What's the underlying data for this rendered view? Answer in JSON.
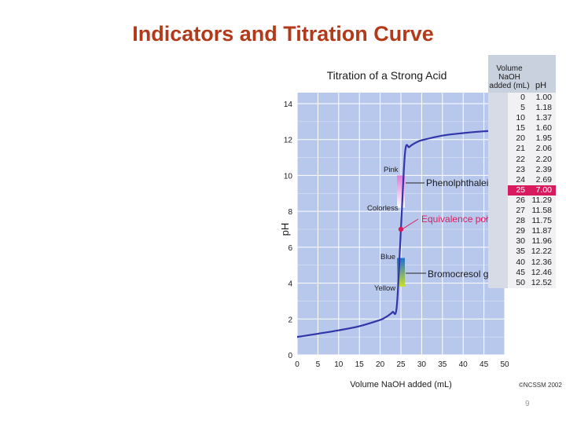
{
  "slide": {
    "title": "Indicators and Titration Curve",
    "page_number": "9",
    "copyright": "©NCSSM 2002"
  },
  "chart_data": {
    "type": "line",
    "title": "Titration of a Strong Acid",
    "xlabel": "Volume NaOH added (mL)",
    "ylabel": "pH",
    "xlim": [
      0,
      50
    ],
    "ylim": [
      0,
      14
    ],
    "xticks": [
      0,
      5,
      10,
      15,
      20,
      25,
      30,
      35,
      40,
      45,
      50
    ],
    "yticks": [
      0,
      2,
      4,
      6,
      8,
      10,
      12,
      14
    ],
    "grid": true,
    "colors": {
      "plot_bg": "#b8c8ec",
      "grid": "#ffffff",
      "curve": "#3035a8",
      "phenolphthalein": "#e27ad8",
      "bromocresol_top": "#1f6fd0",
      "bromocresol_bottom": "#c9e02a",
      "equivalence": "#d81b5e"
    },
    "series": [
      {
        "x": [
          0,
          5,
          10,
          15,
          20,
          21,
          22,
          23,
          24,
          25,
          26,
          27,
          28,
          29,
          30,
          35,
          40,
          45,
          50
        ],
        "y": [
          1.0,
          1.18,
          1.37,
          1.6,
          1.95,
          2.06,
          2.2,
          2.39,
          2.69,
          7.0,
          11.29,
          11.58,
          11.75,
          11.87,
          11.96,
          12.22,
          12.36,
          12.46,
          12.52
        ]
      }
    ],
    "indicators": [
      {
        "name": "Phenolphthalein",
        "top_label": "Pink",
        "bottom_label": "Colorless",
        "x": 25,
        "y_range": [
          8.2,
          10
        ]
      },
      {
        "name": "Bromocresol green",
        "top_label": "Blue",
        "bottom_label": "Yellow",
        "x": 25,
        "y_range": [
          3.8,
          5.4
        ]
      }
    ],
    "annotations": [
      {
        "text": "Equivalence point",
        "x": 25,
        "y": 7.0
      }
    ]
  },
  "table": {
    "header_volume": "Volume NaOH added (mL)",
    "header_ph": "pH",
    "rows": [
      {
        "v": "0",
        "ph": "1.00"
      },
      {
        "v": "5",
        "ph": "1.18"
      },
      {
        "v": "10",
        "ph": "1.37"
      },
      {
        "v": "15",
        "ph": "1.60"
      },
      {
        "v": "20",
        "ph": "1.95"
      },
      {
        "v": "21",
        "ph": "2.06"
      },
      {
        "v": "22",
        "ph": "2.20"
      },
      {
        "v": "23",
        "ph": "2.39"
      },
      {
        "v": "24",
        "ph": "2.69"
      },
      {
        "v": "25",
        "ph": "7.00",
        "highlight": true
      },
      {
        "v": "26",
        "ph": "11.29"
      },
      {
        "v": "27",
        "ph": "11.58"
      },
      {
        "v": "28",
        "ph": "11.75"
      },
      {
        "v": "29",
        "ph": "11.87"
      },
      {
        "v": "30",
        "ph": "11.96"
      },
      {
        "v": "35",
        "ph": "12.22"
      },
      {
        "v": "40",
        "ph": "12.36"
      },
      {
        "v": "45",
        "ph": "12.46"
      },
      {
        "v": "50",
        "ph": "12.52"
      }
    ]
  }
}
